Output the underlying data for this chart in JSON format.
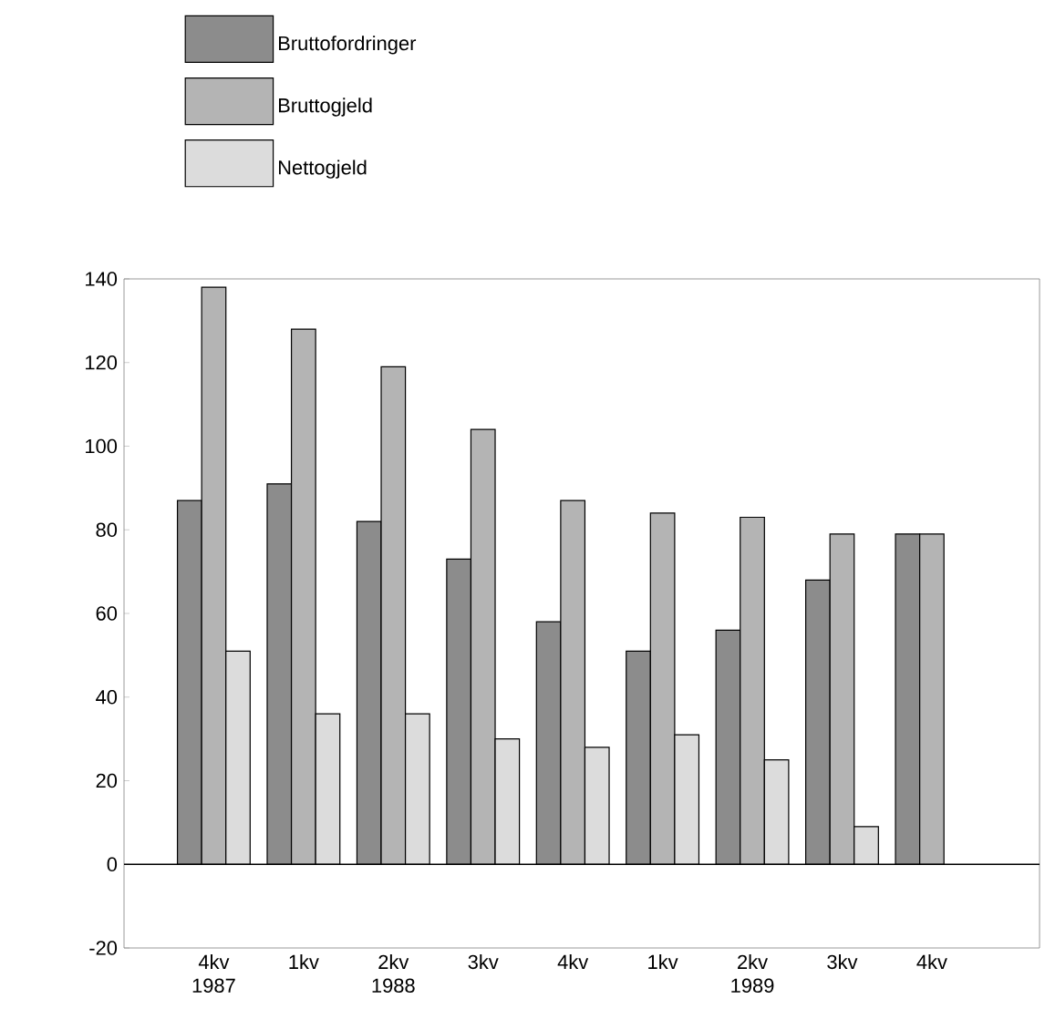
{
  "chart_data": {
    "type": "bar",
    "categories": [
      "4kv 1987",
      "1kv",
      "2kv 1988",
      "3kv",
      "4kv",
      "1kv",
      "2kv 1989",
      "3kv",
      "4kv"
    ],
    "series": [
      {
        "name": "Bruttofordringer",
        "color": "#8c8c8c",
        "values": [
          87,
          91,
          82,
          73,
          58,
          51,
          56,
          68,
          79
        ]
      },
      {
        "name": "Bruttogjeld",
        "color": "#b4b4b4",
        "values": [
          138,
          128,
          119,
          104,
          87,
          84,
          83,
          79,
          79
        ]
      },
      {
        "name": "Nettogjeld",
        "color": "#dcdcdc",
        "values": [
          51,
          36,
          36,
          30,
          28,
          31,
          25,
          9,
          null
        ]
      }
    ],
    "ylim": [
      -20,
      140
    ],
    "yticks": [
      -20,
      0,
      20,
      40,
      60,
      80,
      100,
      120,
      140
    ],
    "legend": "top left"
  }
}
